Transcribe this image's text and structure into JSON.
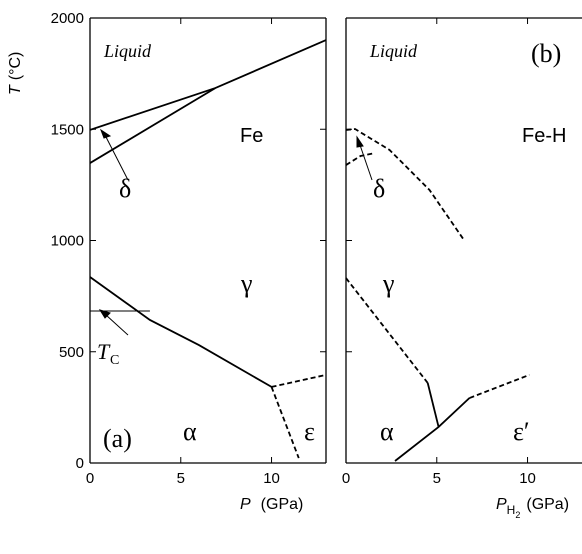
{
  "chart_data": [
    {
      "type": "line",
      "xlim": [
        0,
        13
      ],
      "ylim": [
        0,
        2000
      ],
      "xticks": [
        0,
        5,
        10
      ],
      "yticks": [
        0,
        500,
        1000,
        1500,
        2000
      ],
      "xlabel": {
        "var": "P",
        "unit": "(GPa)"
      },
      "ylabel": {
        "var": "T",
        "unit": "(°C)"
      },
      "annotations": [
        "Liquid",
        "Fe",
        "δ",
        "γ",
        "α",
        "ε",
        "(a)",
        "T",
        "C"
      ],
      "series": [
        {
          "color": "#000000",
          "dashed": false,
          "x": [
            0,
            6.9,
            13
          ],
          "values": [
            1497,
            1685,
            1901
          ]
        },
        {
          "color": "#000000",
          "dashed": false,
          "x": [
            0,
            6.9
          ],
          "values": [
            1348,
            1685
          ]
        },
        {
          "color": "#000000",
          "dashed": false,
          "x": [
            0,
            3.3,
            6.0,
            10
          ],
          "values": [
            836,
            643,
            530,
            342
          ]
        },
        {
          "color": "#000000",
          "dashed": false,
          "thin": true,
          "x": [
            0,
            3.3
          ],
          "values": [
            683,
            683
          ]
        },
        {
          "color": "#000000",
          "dashed": true,
          "x": [
            10,
            13
          ],
          "values": [
            342,
            396
          ]
        },
        {
          "color": "#000000",
          "dashed": true,
          "x": [
            10,
            11.5
          ],
          "values": [
            342,
            22
          ]
        }
      ]
    },
    {
      "type": "line",
      "xlim": [
        0,
        13
      ],
      "ylim": [
        0,
        2000
      ],
      "xticks": [
        0,
        5,
        10
      ],
      "yticks": [
        0,
        500,
        1000,
        1500,
        2000
      ],
      "xlabel": {
        "var": "P",
        "sub": "H",
        "sub2": "2",
        "unit": "(GPa)"
      },
      "annotations": [
        "Liquid",
        "(b)",
        "Fe-H",
        "δ",
        "γ",
        "α",
        "ε′"
      ],
      "series": [
        {
          "color": "#000000",
          "dashed": true,
          "x": [
            0,
            0.5,
            2.4,
            4.6,
            6.5
          ],
          "values": [
            1497,
            1501,
            1407,
            1227,
            1002
          ]
        },
        {
          "color": "#000000",
          "dashed": true,
          "x": [
            0,
            0.8,
            1.6
          ],
          "values": [
            1339,
            1380,
            1393
          ]
        },
        {
          "color": "#000000",
          "dashed": true,
          "x": [
            0,
            4.5
          ],
          "values": [
            831,
            360
          ]
        },
        {
          "color": "#000000",
          "dashed": false,
          "x": [
            4.5,
            5.1
          ],
          "values": [
            360,
            162
          ]
        },
        {
          "color": "#000000",
          "dashed": false,
          "x": [
            2.7,
            5.1,
            6.8
          ],
          "values": [
            9,
            162,
            292
          ]
        },
        {
          "color": "#000000",
          "dashed": true,
          "x": [
            6.8,
            10.1
          ],
          "values": [
            292,
            396
          ]
        }
      ]
    }
  ]
}
